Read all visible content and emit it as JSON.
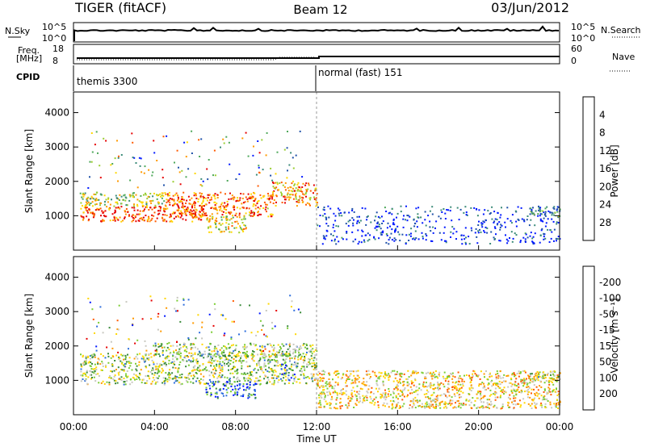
{
  "header": {
    "radar": "TIGER (fitACF)",
    "beam": "Beam 12",
    "date": "03/Jun/2012"
  },
  "strips": {
    "nsky_label": "N.Sky",
    "nsky_ticks": [
      "10^5",
      "10^0"
    ],
    "nsearch_label": "N.Search",
    "nsearch_ticks": [
      "10^5",
      "10^0"
    ],
    "freq_label_1": "Freq.",
    "freq_label_2": "[MHz]",
    "freq_ticks": [
      "18",
      "8"
    ],
    "nave_label": "Nave",
    "nave_ticks": [
      "60",
      "0"
    ],
    "cpid_label": "CPID",
    "cpid_segments": [
      "themis 3300",
      "normal (fast) 151"
    ]
  },
  "chart_data": [
    {
      "type": "heatmap",
      "panel": "power",
      "ylabel": "Slant Range [km]",
      "yticks": [
        "1000",
        "2000",
        "3000",
        "4000"
      ],
      "ylim": [
        0,
        4600
      ],
      "xlim": [
        0,
        24
      ],
      "colorbar_label": "Power [dB]",
      "colorbar_ticks": [
        "4",
        "8",
        "12",
        "16",
        "20",
        "24",
        "28"
      ],
      "colors": [
        "#0018ff",
        "#1e50a8",
        "#3a8a78",
        "#4ea85a",
        "#9acd32",
        "#ffd700",
        "#ff9a00",
        "#ff5a00",
        "#e60000"
      ],
      "regions": [
        {
          "t0": 0.3,
          "t1": 6.5,
          "r0": 850,
          "r1": 1300,
          "level": 0.85
        },
        {
          "t0": 0.3,
          "t1": 4.5,
          "r0": 1300,
          "r1": 1700,
          "level": 0.5
        },
        {
          "t0": 4.5,
          "t1": 9.8,
          "r0": 1000,
          "r1": 1700,
          "level": 0.8
        },
        {
          "t0": 6.5,
          "t1": 8.5,
          "r0": 500,
          "r1": 1000,
          "level": 0.55
        },
        {
          "t0": 9.8,
          "t1": 12.0,
          "r0": 1300,
          "r1": 2000,
          "level": 0.7
        },
        {
          "t0": 12.0,
          "t1": 24.0,
          "r0": 200,
          "r1": 1300,
          "level": 0.1
        },
        {
          "t0": 22.5,
          "t1": 24.0,
          "r0": 1000,
          "r1": 1300,
          "level": 0.35
        }
      ]
    },
    {
      "type": "heatmap",
      "panel": "velocity",
      "xlabel": "Time UT",
      "xticks": [
        "00:00",
        "04:00",
        "08:00",
        "12:00",
        "16:00",
        "20:00",
        "00:00"
      ],
      "ylabel": "Slant Range [km]",
      "yticks": [
        "1000",
        "2000",
        "3000",
        "4000"
      ],
      "ylim": [
        0,
        4600
      ],
      "xlim": [
        0,
        24
      ],
      "colorbar_label": "Velocity [m s⁻¹]",
      "colorbar_ticks": [
        "200",
        "100",
        "50",
        "15",
        "-15",
        "-50",
        "-100",
        "-200"
      ],
      "colors": [
        "#0018ff",
        "#2e6edc",
        "#3a8a3a",
        "#7acd32",
        "#c8c8c0",
        "#ffd700",
        "#ff9a00",
        "#ff5a00",
        "#e60000"
      ],
      "regions": [
        {
          "t0": 0.3,
          "t1": 12.0,
          "r0": 900,
          "r1": 1800,
          "level": 0.45
        },
        {
          "t0": 4.0,
          "t1": 12.0,
          "r0": 1700,
          "r1": 2100,
          "level": 0.45
        },
        {
          "t0": 6.5,
          "t1": 9.0,
          "r0": 500,
          "r1": 1000,
          "level": 0.2
        },
        {
          "t0": 10.2,
          "t1": 11.0,
          "r0": 1000,
          "r1": 1500,
          "level": 0.0
        },
        {
          "t0": 12.0,
          "t1": 24.0,
          "r0": 200,
          "r1": 1300,
          "level": 0.6
        },
        {
          "t0": 22.5,
          "t1": 24.0,
          "r0": 1000,
          "r1": 1300,
          "level": 0.45
        }
      ]
    }
  ]
}
